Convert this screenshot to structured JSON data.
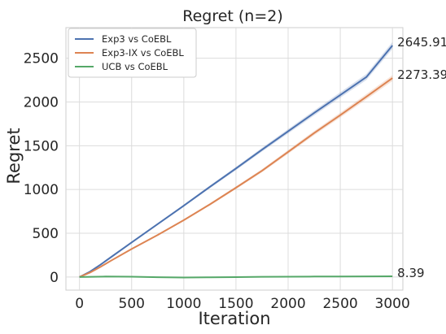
{
  "chart_data": {
    "type": "line",
    "title": "Regret (n=2)",
    "xlabel": "Iteration",
    "ylabel": "Regret",
    "xlim": [
      -130,
      3100
    ],
    "ylim": [
      -150,
      2850
    ],
    "xticks": [
      0,
      500,
      1000,
      1500,
      2000,
      2500,
      3000
    ],
    "yticks": [
      0,
      500,
      1000,
      1500,
      2000,
      2500
    ],
    "grid": true,
    "legend_position": "top-left",
    "series": [
      {
        "name": "Exp3 vs CoEBL",
        "color": "#4c72b0",
        "end_label": "2645.91",
        "x": [
          0,
          100,
          200,
          300,
          500,
          750,
          1000,
          1250,
          1500,
          1750,
          2000,
          2250,
          2500,
          2750,
          3000
        ],
        "y": [
          0,
          60,
          140,
          225,
          395,
          605,
          815,
          1030,
          1240,
          1455,
          1665,
          1875,
          2080,
          2285,
          2646
        ]
      },
      {
        "name": "Exp3-IX vs CoEBL",
        "color": "#dd8452",
        "end_label": "2273.39",
        "x": [
          0,
          100,
          200,
          300,
          500,
          750,
          1000,
          1250,
          1500,
          1750,
          2000,
          2250,
          2500,
          2750,
          3000
        ],
        "y": [
          0,
          50,
          115,
          185,
          320,
          480,
          650,
          830,
          1020,
          1215,
          1430,
          1645,
          1850,
          2060,
          2273
        ]
      },
      {
        "name": "UCB vs CoEBL",
        "color": "#55a868",
        "end_label": "8.39",
        "x": [
          0,
          250,
          500,
          750,
          1000,
          1250,
          1500,
          1750,
          2000,
          2250,
          2500,
          2750,
          3000
        ],
        "y": [
          0,
          5,
          3,
          -2,
          -6,
          -4,
          -1,
          2,
          3,
          5,
          6,
          7,
          8.39
        ]
      }
    ]
  }
}
